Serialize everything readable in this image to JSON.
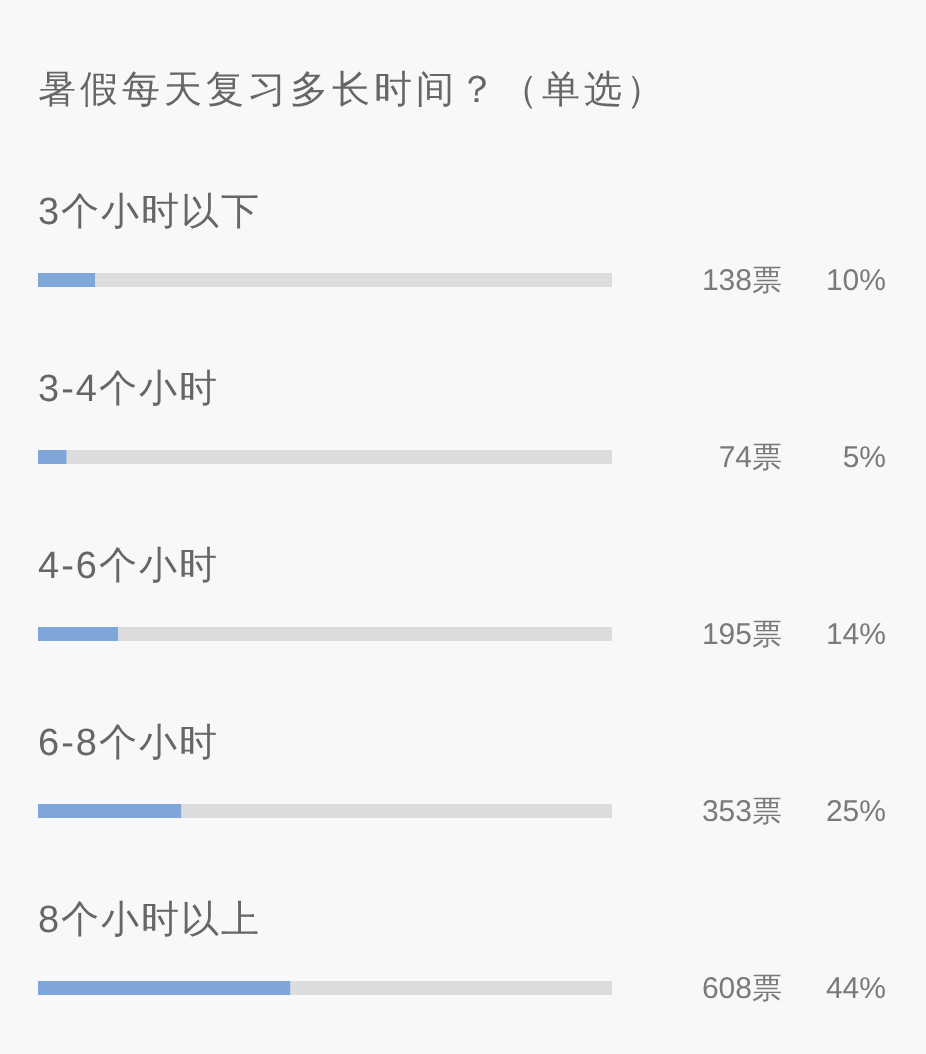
{
  "chart_data": {
    "type": "bar",
    "orientation": "horizontal",
    "title": "暑假每天复习多长时间？（单选）",
    "categories": [
      "3个小时以下",
      "3-4个小时",
      "4-6个小时",
      "6-8个小时",
      "8个小时以上"
    ],
    "values": [
      10,
      5,
      14,
      25,
      44
    ],
    "color": "#7fa6d9",
    "value_labels": [
      "10%",
      "5%",
      "14%",
      "25%",
      "44%"
    ],
    "xlim": [
      0,
      100
    ],
    "tick_labels": "y",
    "grid": false,
    "annotations": [
      "138票",
      "74票",
      "195票",
      "353票",
      "608票"
    ]
  }
}
